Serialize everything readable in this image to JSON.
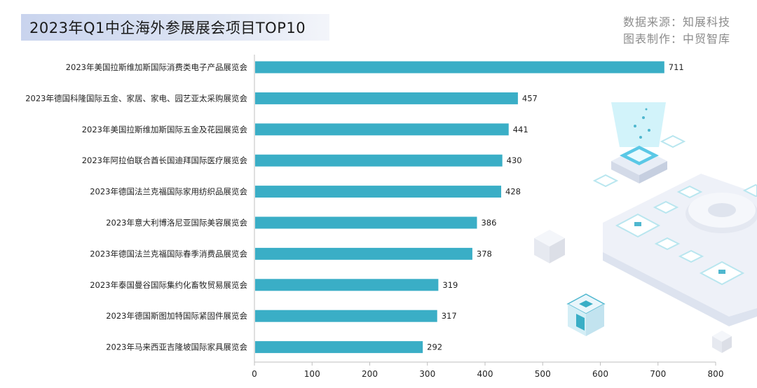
{
  "header": {
    "title": "2023年Q1中企海外参展展会项目TOP10",
    "source": "数据来源：知展科技",
    "maker": "图表制作：中贸智库"
  },
  "colors": {
    "bar": "#3aaec6",
    "axis": "#bfbfbf",
    "text": "#222222"
  },
  "chart_data": {
    "type": "bar",
    "orientation": "horizontal",
    "title": "2023年Q1中企海外参展展会项目TOP10",
    "categories": [
      "2023年美国拉斯维加斯国际消费类电子产品展览会",
      "2023年德国科隆国际五金、家居、家电、园艺亚太采购展览会",
      "2023年美国拉斯维加斯国际五金及花园展览会",
      "2023年阿拉伯联合酋长国迪拜国际医疗展览会",
      "2023年德国法兰克福国际家用纺织品展览会",
      "2023年意大利博洛尼亚国际美容展览会",
      "2023年德国法兰克福国际春季消费品展览会",
      "2023年泰国曼谷国际集约化畜牧贸易展览会",
      "2023年德国斯图加特国际紧固件展览会",
      "2023年马来西亚吉隆坡国际家具展览会"
    ],
    "values": [
      711,
      457,
      441,
      430,
      428,
      386,
      378,
      319,
      317,
      292
    ],
    "xlim": [
      0,
      800
    ],
    "xticks": [
      0,
      100,
      200,
      300,
      400,
      500,
      600,
      700,
      800
    ],
    "grid": false,
    "data_labels": true
  }
}
